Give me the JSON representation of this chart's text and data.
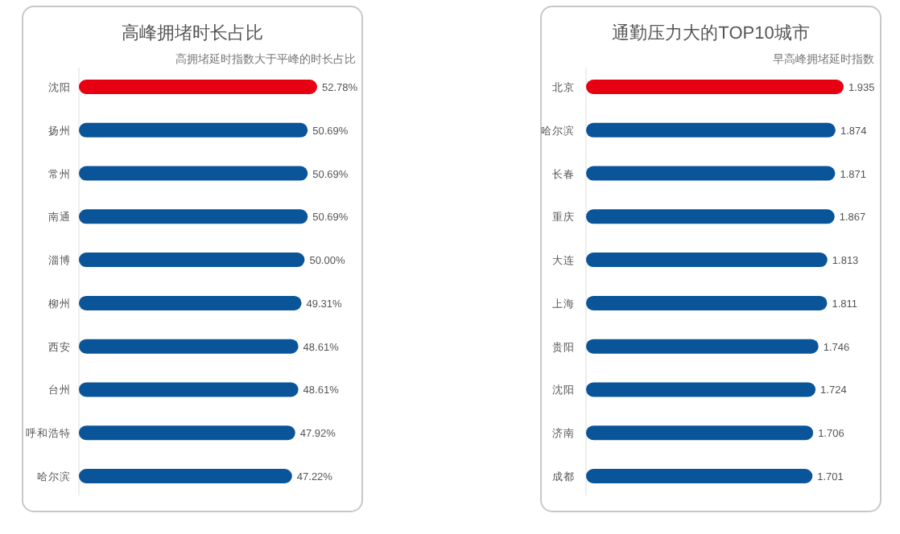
{
  "chart_data": [
    {
      "type": "bar",
      "orientation": "horizontal",
      "title": "高峰拥堵时长占比",
      "subtitle": "高拥堵延时指数大于平峰的时长占比",
      "categories": [
        "沈阳",
        "扬州",
        "常州",
        "南通",
        "淄博",
        "柳州",
        "西安",
        "台州",
        "呼和浩特",
        "哈尔滨"
      ],
      "values": [
        52.78,
        50.69,
        50.69,
        50.69,
        50.0,
        49.31,
        48.61,
        48.61,
        47.92,
        47.22
      ],
      "value_labels": [
        "52.78%",
        "50.69%",
        "50.69%",
        "50.69%",
        "50.00%",
        "49.31%",
        "48.61%",
        "48.61%",
        "47.92%",
        "47.22%"
      ],
      "colors": [
        "#e60012",
        "#0a5499",
        "#0a5499",
        "#0a5499",
        "#0a5499",
        "#0a5499",
        "#0a5499",
        "#0a5499",
        "#0a5499",
        "#0a5499"
      ]
    },
    {
      "type": "bar",
      "orientation": "horizontal",
      "title": "通勤压力大的TOP10城市",
      "subtitle": "早高峰拥堵延时指数",
      "categories": [
        "北京",
        "哈尔滨",
        "长春",
        "重庆",
        "大连",
        "上海",
        "贵阳",
        "沈阳",
        "济南",
        "成都"
      ],
      "values": [
        1.935,
        1.874,
        1.871,
        1.867,
        1.813,
        1.811,
        1.746,
        1.724,
        1.706,
        1.701
      ],
      "data_labels": true,
      "colors": [
        "#e60012",
        "#0a5499",
        "#0a5499",
        "#0a5499",
        "#0a5499",
        "#0a5499",
        "#0a5499",
        "#0a5499",
        "#0a5499",
        "#0a5499"
      ]
    }
  ]
}
